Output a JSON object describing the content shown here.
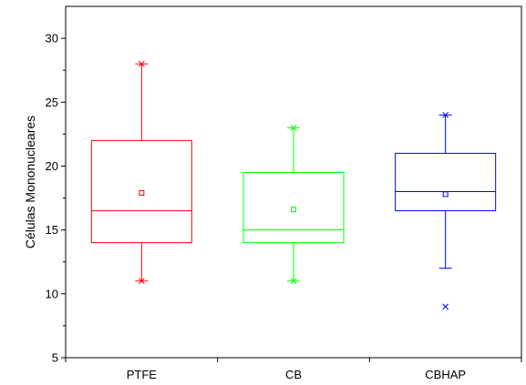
{
  "chart_data": {
    "type": "box",
    "title": "",
    "xlabel": "",
    "ylabel": "Células Mononucleares",
    "ylim": [
      5,
      32.5
    ],
    "yticks": [
      5,
      10,
      15,
      20,
      25,
      30
    ],
    "categories": [
      "PTFE",
      "CB",
      "CBHAP"
    ],
    "grid": false,
    "legend": "none",
    "boxes": [
      {
        "category": "PTFE",
        "color": "#ff0000",
        "whisker_low": 11,
        "q1": 14,
        "median": 16.5,
        "q3": 22,
        "whisker_high": 28,
        "mean": 17.9,
        "min": 11,
        "max": 28,
        "outliers": []
      },
      {
        "category": "CB",
        "color": "#00ff00",
        "whisker_low": 11,
        "q1": 14,
        "median": 15,
        "q3": 19.5,
        "whisker_high": 23,
        "mean": 16.6,
        "min": 11,
        "max": 23,
        "outliers": []
      },
      {
        "category": "CBHAP",
        "color": "#0000ff",
        "whisker_low": 12,
        "q1": 16.5,
        "median": 18,
        "q3": 21,
        "whisker_high": 24,
        "mean": 17.8,
        "min": 9,
        "max": 24,
        "outliers": [
          9
        ]
      }
    ]
  }
}
